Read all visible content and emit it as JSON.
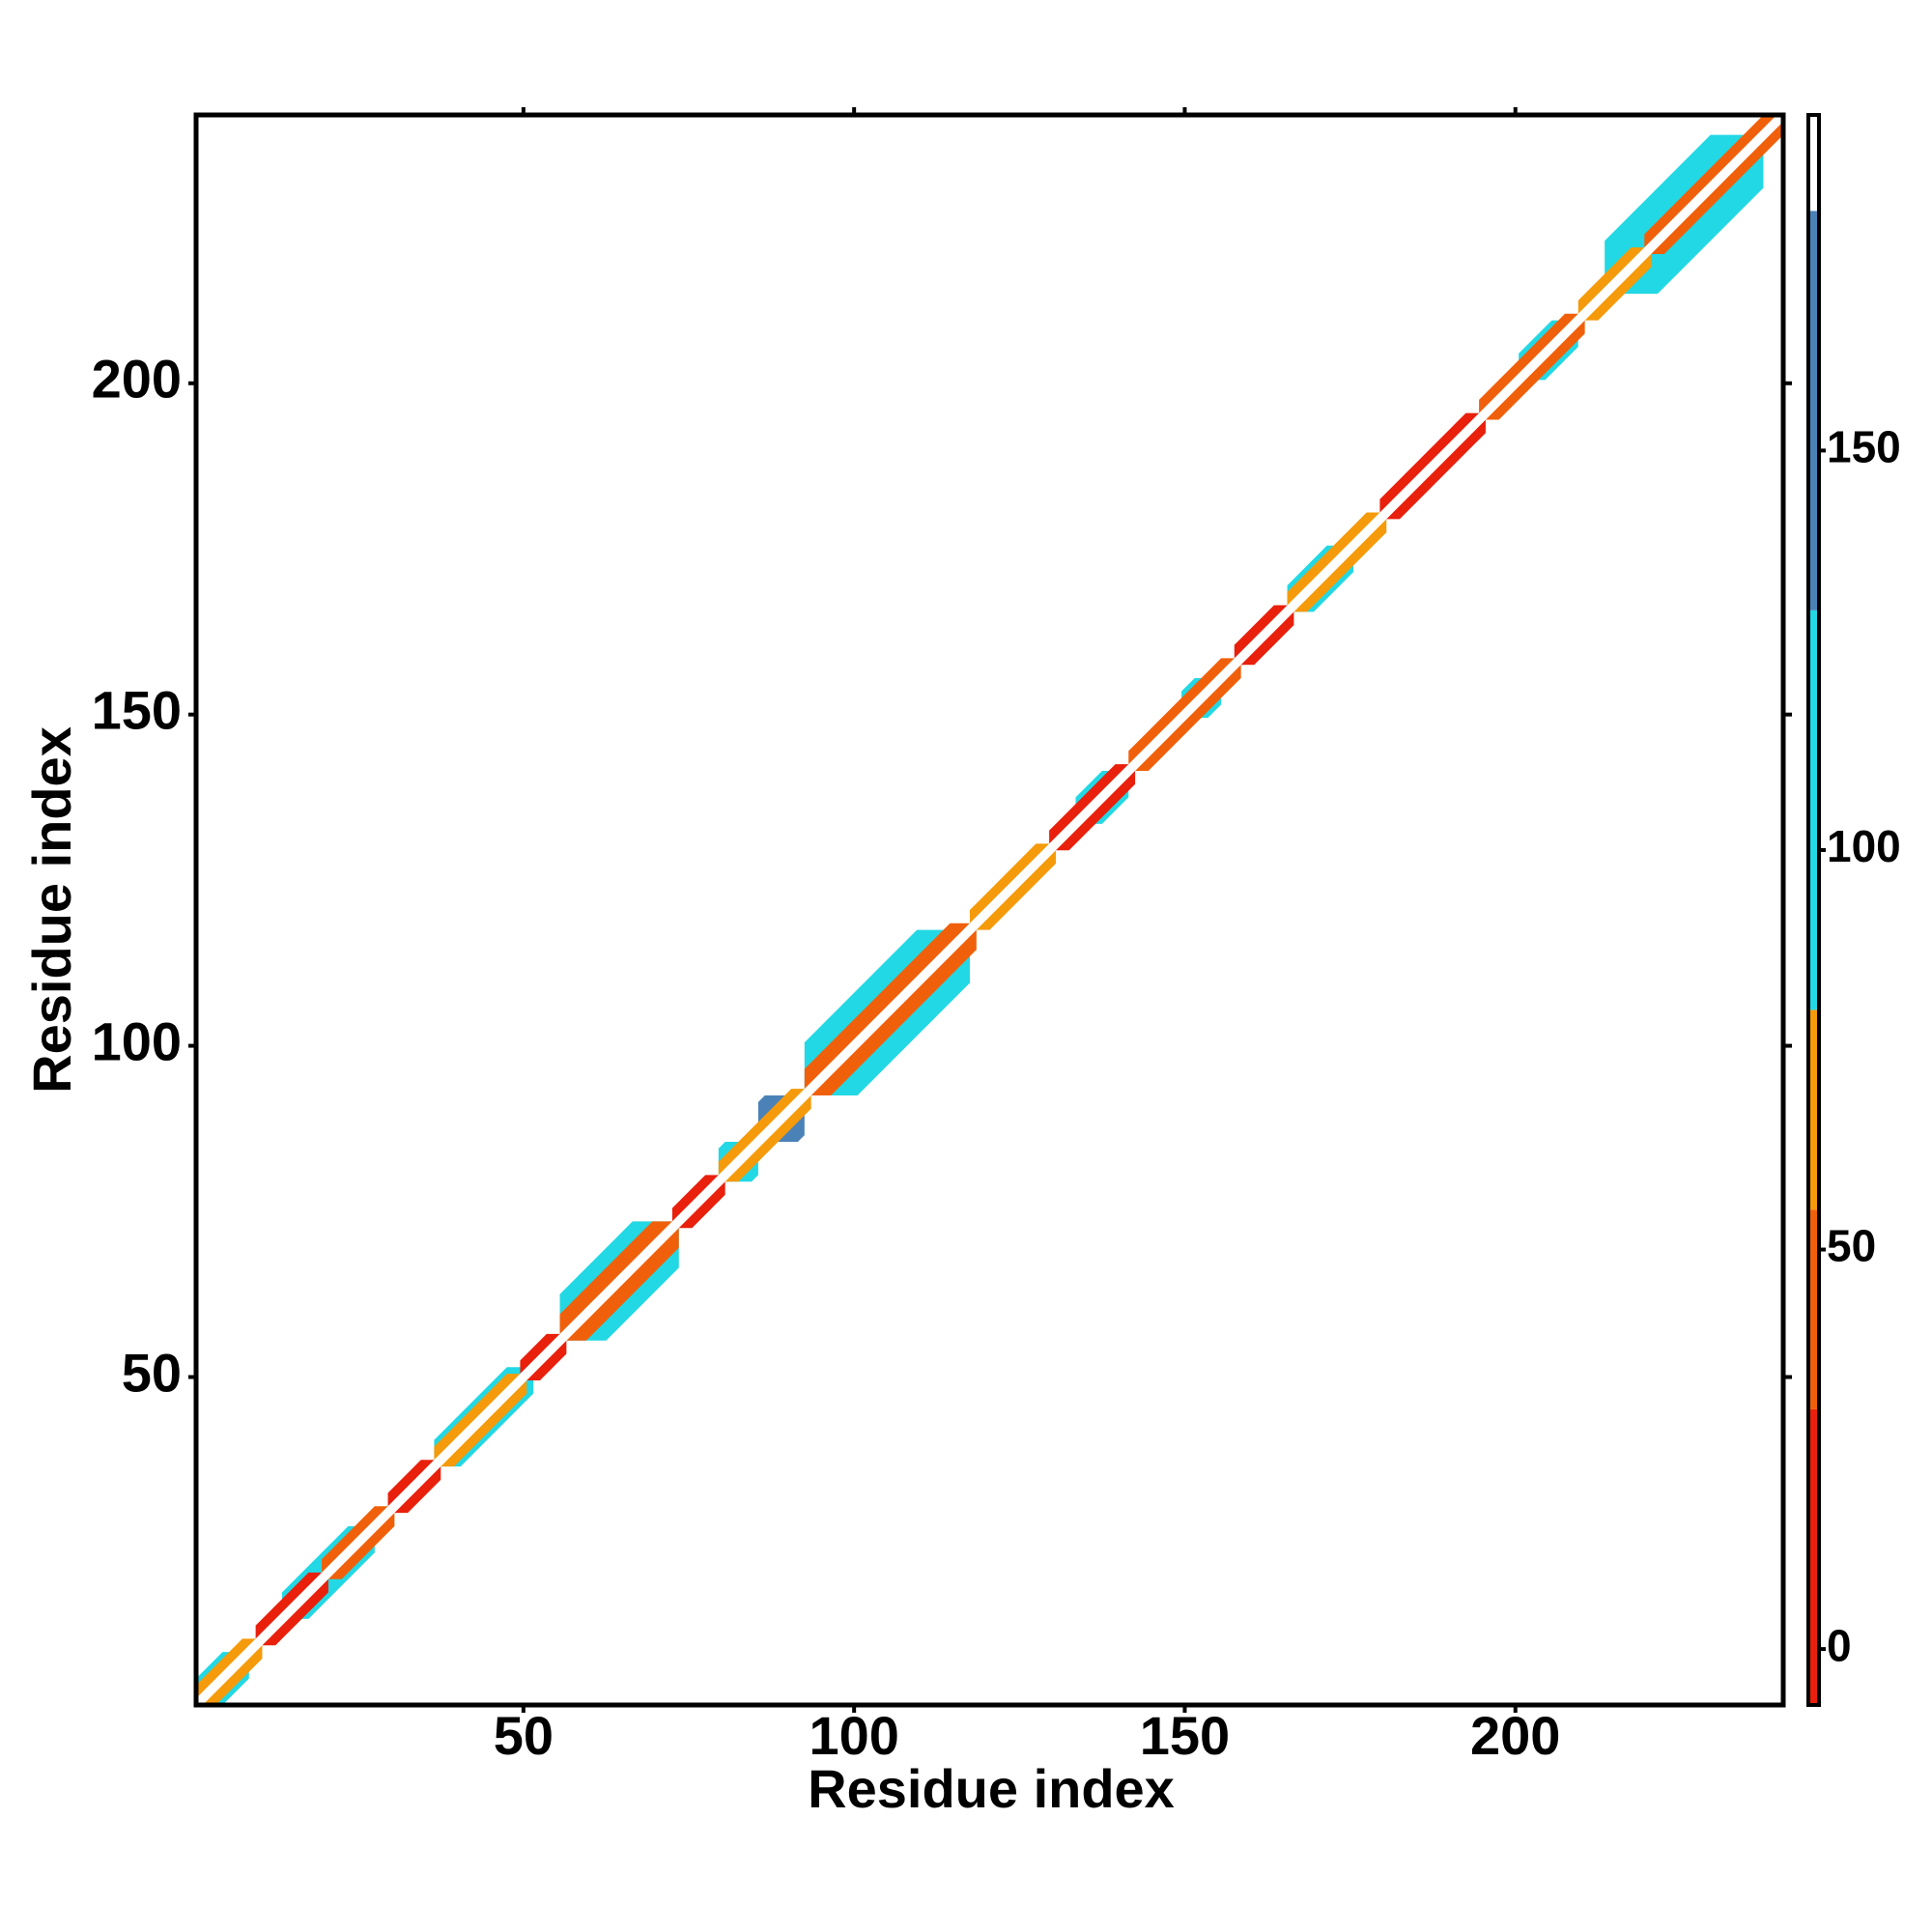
{
  "chart_data": {
    "type": "heatmap",
    "xlabel": "Residue index",
    "ylabel": "Residue index",
    "xlim": [
      0.5,
      240.5
    ],
    "ylim": [
      0.5,
      240.5
    ],
    "xticks": [
      50,
      100,
      150,
      200
    ],
    "yticks": [
      50,
      100,
      150,
      200
    ],
    "segments": [
      {
        "start": 1,
        "end": 8,
        "width": 3,
        "value": 105
      },
      {
        "start": 14,
        "end": 27,
        "width": 3,
        "value": 105
      },
      {
        "start": 37,
        "end": 51,
        "width": 3,
        "value": 105
      },
      {
        "start": 56,
        "end": 73,
        "width": 6,
        "value": 105
      },
      {
        "start": 80,
        "end": 85,
        "width": 4,
        "value": 105
      },
      {
        "start": 86,
        "end": 92,
        "width": 5,
        "value": 150
      },
      {
        "start": 93,
        "end": 117,
        "width": 7,
        "value": 105
      },
      {
        "start": 134,
        "end": 141,
        "width": 3,
        "value": 105
      },
      {
        "start": 150,
        "end": 155,
        "width": 3,
        "value": 105
      },
      {
        "start": 166,
        "end": 175,
        "width": 3,
        "value": 105
      },
      {
        "start": 201,
        "end": 209,
        "width": 3,
        "value": 105
      },
      {
        "start": 214,
        "end": 237,
        "width": 7,
        "value": 105
      },
      {
        "start": 1,
        "end": 10,
        "width": 2,
        "value": 65
      },
      {
        "start": 10,
        "end": 20,
        "width": 2,
        "value": 15
      },
      {
        "start": 20,
        "end": 30,
        "width": 2,
        "value": 45
      },
      {
        "start": 30,
        "end": 37,
        "width": 2,
        "value": 15
      },
      {
        "start": 37,
        "end": 50,
        "width": 2,
        "value": 65
      },
      {
        "start": 50,
        "end": 56,
        "width": 2,
        "value": 15
      },
      {
        "start": 56,
        "end": 73,
        "width": 3,
        "value": 45
      },
      {
        "start": 73,
        "end": 80,
        "width": 2,
        "value": 15
      },
      {
        "start": 80,
        "end": 93,
        "width": 2,
        "value": 65
      },
      {
        "start": 93,
        "end": 118,
        "width": 3,
        "value": 45
      },
      {
        "start": 118,
        "end": 130,
        "width": 2,
        "value": 65
      },
      {
        "start": 130,
        "end": 142,
        "width": 2,
        "value": 15
      },
      {
        "start": 142,
        "end": 158,
        "width": 2,
        "value": 45
      },
      {
        "start": 158,
        "end": 166,
        "width": 2,
        "value": 15
      },
      {
        "start": 166,
        "end": 180,
        "width": 2,
        "value": 65
      },
      {
        "start": 180,
        "end": 195,
        "width": 2,
        "value": 15
      },
      {
        "start": 195,
        "end": 210,
        "width": 2,
        "value": 45
      },
      {
        "start": 210,
        "end": 220,
        "width": 2,
        "value": 65
      },
      {
        "start": 220,
        "end": 240,
        "width": 2,
        "value": 45
      },
      {
        "start": 1,
        "end": 240,
        "width": 0,
        "value": 190
      }
    ],
    "colorbar": {
      "clim": [
        -7,
        192
      ],
      "ticks": [
        0,
        50,
        100,
        150
      ],
      "bands": [
        {
          "from": -7,
          "to": 30,
          "color": "#e8200c"
        },
        {
          "from": 30,
          "to": 55,
          "color": "#f0600a"
        },
        {
          "from": 55,
          "to": 80,
          "color": "#f59a0a"
        },
        {
          "from": 80,
          "to": 130,
          "color": "#22d8e4"
        },
        {
          "from": 130,
          "to": 180,
          "color": "#4a82b8"
        },
        {
          "from": 180,
          "to": 192,
          "color": "#ffffff"
        }
      ]
    }
  }
}
